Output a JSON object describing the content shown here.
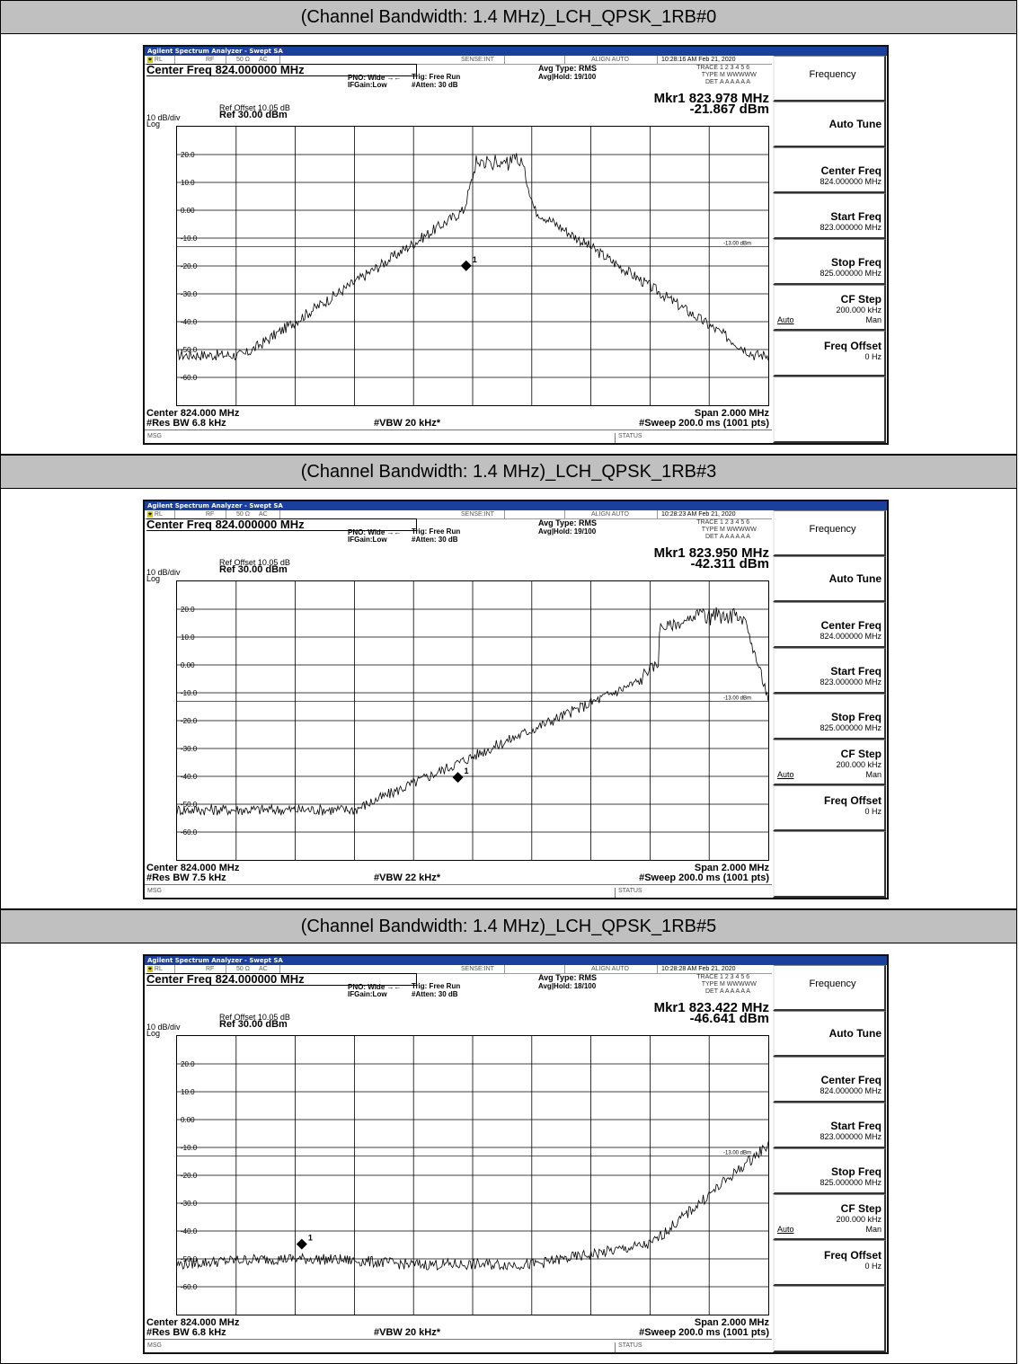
{
  "sections": [
    {
      "heading": "(Channel Bandwidth: 1.4 MHz)_LCH_QPSK_1RB#0",
      "app_title": "Agilent Spectrum Analyzer - Swept SA",
      "status": {
        "rl": "RL",
        "rf": "RF",
        "ohm": "50 Ω",
        "ac": "AC",
        "sense": "SENSE:INT",
        "align": "ALIGN AUTO",
        "time": "10:28:16 AM Feb 21, 2020"
      },
      "center_freq": "Center Freq 824.000000 MHz",
      "pno": "PNO: Wide",
      "ifgain": "IFGain:Low",
      "trig": "Trig: Free Run",
      "atten": "#Atten: 30 dB",
      "avg_type": "Avg Type: RMS",
      "avg_hold": "Avg|Hold: 19/100",
      "trace_label": "TRACE",
      "trace_val": "1 2 3 4 5 6",
      "type_label": "TYPE",
      "type_val": "M WWWWW",
      "det_label": "DET",
      "det_val": "A A A A A A",
      "marker_freq": "Mkr1 823.978 MHz",
      "marker_amp": "-21.867 dBm",
      "ref_offset": "Ref Offset 10.05 dB",
      "scale": "10 dB/div",
      "ref_level": "Ref 30.00 dBm",
      "log": "Log",
      "limit_label": "-13.00 dBm",
      "center_foot": "Center 824.000 MHz",
      "rbw": "#Res BW 6.8 kHz",
      "vbw": "#VBW 20 kHz*",
      "span": "Span 2.000 MHz",
      "sweep": "#Sweep  200.0 ms (1001 pts)",
      "msg": "MSG",
      "status_label": "STATUS",
      "marker_x": 823.978,
      "marker_y": -21.867,
      "trace_profile": "rb0"
    },
    {
      "heading": "(Channel Bandwidth: 1.4 MHz)_LCH_QPSK_1RB#3",
      "app_title": "Agilent Spectrum Analyzer - Swept SA",
      "status": {
        "rl": "RL",
        "rf": "RF",
        "ohm": "50 Ω",
        "ac": "AC",
        "sense": "SENSE:INT",
        "align": "ALIGN AUTO",
        "time": "10:28:23 AM Feb 21, 2020"
      },
      "center_freq": "Center Freq 824.000000 MHz",
      "pno": "PNO: Wide",
      "ifgain": "IFGain:Low",
      "trig": "Trig: Free Run",
      "atten": "#Atten: 30 dB",
      "avg_type": "Avg Type: RMS",
      "avg_hold": "Avg|Hold: 19/100",
      "trace_label": "TRACE",
      "trace_val": "1 2 3 4 5 6",
      "type_label": "TYPE",
      "type_val": "M WWWWW",
      "det_label": "DET",
      "det_val": "A A A A A A",
      "marker_freq": "Mkr1 823.950 MHz",
      "marker_amp": "-42.311 dBm",
      "ref_offset": "Ref Offset 10.05 dB",
      "scale": "10 dB/div",
      "ref_level": "Ref 30.00 dBm",
      "log": "Log",
      "limit_label": "-13.00 dBm",
      "center_foot": "Center 824.000 MHz",
      "rbw": "#Res BW 7.5 kHz",
      "vbw": "#VBW 22 kHz*",
      "span": "Span 2.000 MHz",
      "sweep": "#Sweep  200.0 ms (1001 pts)",
      "msg": "MSG",
      "status_label": "STATUS",
      "marker_x": 823.95,
      "marker_y": -42.311,
      "trace_profile": "rb3"
    },
    {
      "heading": "(Channel Bandwidth: 1.4 MHz)_LCH_QPSK_1RB#5",
      "app_title": "Agilent Spectrum Analyzer - Swept SA",
      "status": {
        "rl": "RL",
        "rf": "RF",
        "ohm": "50 Ω",
        "ac": "AC",
        "sense": "SENSE:INT",
        "align": "ALIGN AUTO",
        "time": "10:28:28 AM Feb 21, 2020"
      },
      "center_freq": "Center Freq 824.000000 MHz",
      "pno": "PNO: Wide",
      "ifgain": "IFGain:Low",
      "trig": "Trig: Free Run",
      "atten": "#Atten: 30 dB",
      "avg_type": "Avg Type: RMS",
      "avg_hold": "Avg|Hold: 18/100",
      "trace_label": "TRACE",
      "trace_val": "1 2 3 4 5 6",
      "type_label": "TYPE",
      "type_val": "M WWWWW",
      "det_label": "DET",
      "det_val": "A A A A A A",
      "marker_freq": "Mkr1 823.422 MHz",
      "marker_amp": "-46.641 dBm",
      "ref_offset": "Ref Offset 10.05 dB",
      "scale": "10 dB/div",
      "ref_level": "Ref 30.00 dBm",
      "log": "Log",
      "limit_label": "-13.00 dBm",
      "center_foot": "Center 824.000 MHz",
      "rbw": "#Res BW 6.8 kHz",
      "vbw": "#VBW 20 kHz*",
      "span": "Span 2.000 MHz",
      "sweep": "#Sweep  200.0 ms (1001 pts)",
      "msg": "MSG",
      "status_label": "STATUS",
      "marker_x": 823.422,
      "marker_y": -46.641,
      "trace_profile": "rb5"
    }
  ],
  "menu": {
    "title": "Frequency",
    "auto_tune": "Auto Tune",
    "center_freq": "Center Freq",
    "center_freq_val": "824.000000 MHz",
    "start_freq": "Start Freq",
    "start_freq_val": "823.000000 MHz",
    "stop_freq": "Stop Freq",
    "stop_freq_val": "825.000000 MHz",
    "cf_step": "CF Step",
    "cf_step_val": "200.000 kHz",
    "auto": "Auto",
    "man": "Man",
    "freq_offset": "Freq Offset",
    "freq_offset_val": "0 Hz"
  },
  "y_ticks": [
    "20.0",
    "10.0",
    "0.00",
    "-10.0",
    "-20.0",
    "-30.0",
    "-40.0",
    "-50.0",
    "-60.0"
  ],
  "chart_data": [
    {
      "type": "line",
      "xlim": [
        823.0,
        825.0
      ],
      "ylim": [
        -70,
        30
      ],
      "limit_line": -13.0,
      "series": [
        {
          "name": "1",
          "values": []
        }
      ],
      "marker": {
        "x": 823.978,
        "y": -21.867
      }
    },
    {
      "type": "line",
      "xlim": [
        823.0,
        825.0
      ],
      "ylim": [
        -70,
        30
      ],
      "limit_line": -13.0,
      "series": [
        {
          "name": "1",
          "values": []
        }
      ],
      "marker": {
        "x": 823.95,
        "y": -42.311
      }
    },
    {
      "type": "line",
      "xlim": [
        823.0,
        825.0
      ],
      "ylim": [
        -70,
        30
      ],
      "limit_line": -13.0,
      "series": [
        {
          "name": "1",
          "values": []
        }
      ],
      "marker": {
        "x": 823.422,
        "y": -46.641
      }
    }
  ],
  "colors": {
    "title_bar": "#1b3f9c",
    "header_bg": "#c0c0c0",
    "rl_badge": "#d1c81c"
  }
}
